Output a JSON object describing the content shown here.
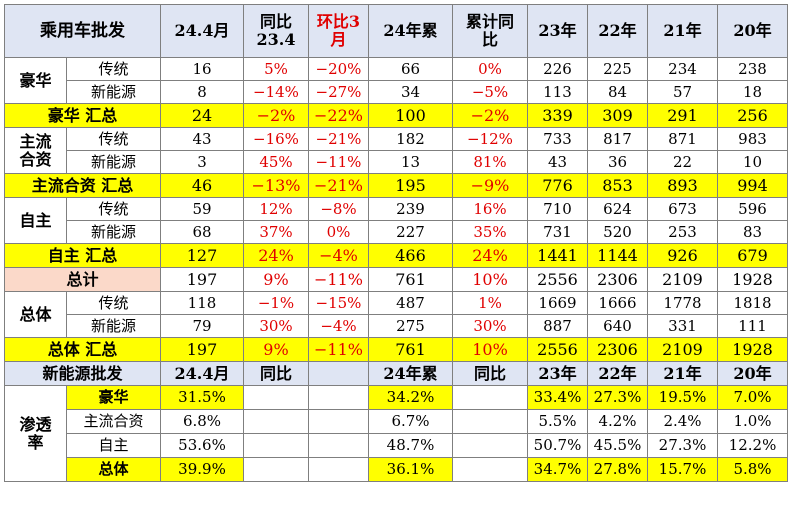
{
  "header": {
    "c0": "乘用车批发",
    "c1": "24.4月",
    "c2": "同比\n23.4",
    "c3": "环比3\n月",
    "c4": "24年累",
    "c5": "累计同\n比",
    "c6": "23年",
    "c7": "22年",
    "c8": "21年",
    "c9": "20年"
  },
  "groups": {
    "luxury": {
      "name": "豪华",
      "sum_label": "豪华 汇总"
    },
    "jv": {
      "name": "主流\n合资",
      "sum_label": "主流合资 汇总"
    },
    "domestic": {
      "name": "自主",
      "sum_label": "自主 汇总"
    },
    "total": {
      "label": "总计"
    },
    "overall": {
      "name": "总体",
      "sum_label": "总体 汇总"
    }
  },
  "rows": {
    "lux_trad": {
      "label": "传统",
      "v": [
        "16",
        "5%",
        "-20%",
        "66",
        "0%",
        "226",
        "225",
        "234",
        "238"
      ]
    },
    "lux_nev": {
      "label": "新能源",
      "v": [
        "8",
        "-14%",
        "-27%",
        "34",
        "-5%",
        "113",
        "84",
        "57",
        "18"
      ]
    },
    "lux_sum": {
      "v": [
        "24",
        "-2%",
        "-22%",
        "100",
        "-2%",
        "339",
        "309",
        "291",
        "256"
      ]
    },
    "jv_trad": {
      "label": "传统",
      "v": [
        "43",
        "-16%",
        "-21%",
        "182",
        "-12%",
        "733",
        "817",
        "871",
        "983"
      ]
    },
    "jv_nev": {
      "label": "新能源",
      "v": [
        "3",
        "45%",
        "-11%",
        "13",
        "81%",
        "43",
        "36",
        "22",
        "10"
      ]
    },
    "jv_sum": {
      "v": [
        "46",
        "-13%",
        "-21%",
        "195",
        "-9%",
        "776",
        "853",
        "893",
        "994"
      ]
    },
    "dom_trad": {
      "label": "传统",
      "v": [
        "59",
        "12%",
        "-8%",
        "239",
        "16%",
        "710",
        "624",
        "673",
        "596"
      ]
    },
    "dom_nev": {
      "label": "新能源",
      "v": [
        "68",
        "37%",
        "0%",
        "227",
        "35%",
        "731",
        "520",
        "253",
        "83"
      ]
    },
    "dom_sum": {
      "v": [
        "127",
        "24%",
        "-4%",
        "466",
        "24%",
        "1441",
        "1144",
        "926",
        "679"
      ]
    },
    "total": {
      "v": [
        "197",
        "9%",
        "-11%",
        "761",
        "10%",
        "2556",
        "2306",
        "2109",
        "1928"
      ]
    },
    "all_trad": {
      "label": "传统",
      "v": [
        "118",
        "-1%",
        "-15%",
        "487",
        "1%",
        "1669",
        "1666",
        "1778",
        "1818"
      ]
    },
    "all_nev": {
      "label": "新能源",
      "v": [
        "79",
        "30%",
        "-4%",
        "275",
        "30%",
        "887",
        "640",
        "331",
        "111"
      ]
    },
    "all_sum": {
      "v": [
        "197",
        "9%",
        "-11%",
        "761",
        "10%",
        "2556",
        "2306",
        "2109",
        "1928"
      ]
    }
  },
  "nev_header": {
    "c0": "新能源批发",
    "c1": "24.4月",
    "c2": "同比",
    "c4": "24年累",
    "c5": "同比",
    "c6": "23年",
    "c7": "22年",
    "c8": "21年",
    "c9": "20年"
  },
  "penetration": {
    "label": "渗透\n率",
    "rows": [
      {
        "label": "豪华",
        "m": "31.5%",
        "ytd": "34.2%",
        "y23": "33.4%",
        "y22": "27.3%",
        "y21": "19.5%",
        "y20": "7.0%"
      },
      {
        "label": "主流合资",
        "m": "6.8%",
        "ytd": "6.7%",
        "y23": "5.5%",
        "y22": "4.2%",
        "y21": "2.4%",
        "y20": "1.0%"
      },
      {
        "label": "自主",
        "m": "53.6%",
        "ytd": "48.7%",
        "y23": "50.7%",
        "y22": "45.5%",
        "y21": "27.3%",
        "y20": "12.2%"
      },
      {
        "label": "总体",
        "m": "39.9%",
        "ytd": "36.1%",
        "y23": "34.7%",
        "y22": "27.8%",
        "y21": "15.7%",
        "y20": "5.8%"
      }
    ]
  },
  "colors": {
    "highlight": "#ffff00",
    "header": "#dfe5f3",
    "total": "#fbd9c9",
    "negative_red": "#e00000"
  }
}
